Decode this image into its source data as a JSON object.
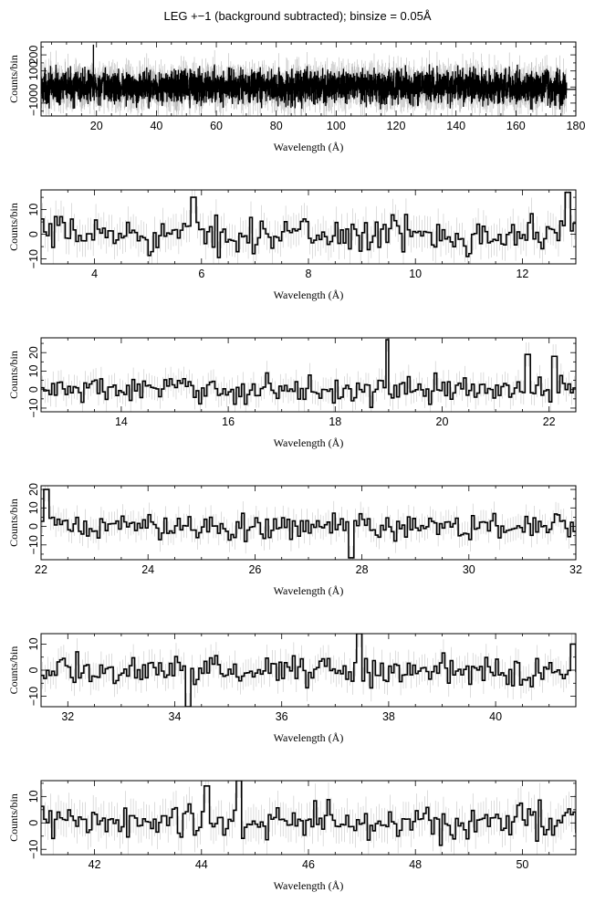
{
  "title": "LEG +−1 (background subtracted); binsize = 0.05Å",
  "chart_data": [
    {
      "type": "line",
      "xlabel": "Wavelength (Å)",
      "ylabel": "Counts/bin",
      "xlim": [
        1.5,
        180
      ],
      "ylim": [
        -180,
        280
      ],
      "xticks": [
        20,
        40,
        60,
        80,
        100,
        120,
        140,
        160,
        180
      ],
      "yticks": [
        -100,
        0,
        100,
        200
      ],
      "ytick_labels": [
        "−100",
        "0",
        "100",
        "200"
      ],
      "series": [
        {
          "style": "histogram with grey error bars",
          "color": "#000000",
          "errcolor": "#bbbbbb",
          "approx_amplitude": 70,
          "spikes": [
            {
              "x": 18.97,
              "y": 260
            }
          ]
        }
      ]
    },
    {
      "type": "line",
      "xlabel": "Wavelength (Å)",
      "ylabel": "Counts/bin",
      "xlim": [
        3,
        13
      ],
      "ylim": [
        -12,
        18
      ],
      "xticks": [
        4,
        6,
        8,
        10,
        12
      ],
      "yticks": [
        -10,
        0,
        10
      ],
      "ytick_labels": [
        "−10",
        "0",
        "10"
      ],
      "series": [
        {
          "style": "histogram with grey error bars",
          "color": "#000000",
          "errcolor": "#bbbbbb",
          "approx_amplitude": 5,
          "spikes": [
            {
              "x": 5.85,
              "y": 15
            },
            {
              "x": 12.85,
              "y": 17
            }
          ]
        }
      ]
    },
    {
      "type": "line",
      "xlabel": "Wavelength (Å)",
      "ylabel": "Counts/bin",
      "xlim": [
        12.5,
        22.5
      ],
      "ylim": [
        -12,
        28
      ],
      "xticks": [
        14,
        16,
        18,
        20,
        22
      ],
      "yticks": [
        -10,
        0,
        10,
        20
      ],
      "ytick_labels": [
        "−10",
        "0",
        "10",
        "20"
      ],
      "series": [
        {
          "style": "histogram with grey error bars",
          "color": "#000000",
          "errcolor": "#bbbbbb",
          "approx_amplitude": 5,
          "spikes": [
            {
              "x": 18.97,
              "y": 27
            },
            {
              "x": 21.6,
              "y": 19
            },
            {
              "x": 22.1,
              "y": 18
            }
          ]
        }
      ]
    },
    {
      "type": "line",
      "xlabel": "Wavelength (Å)",
      "ylabel": "Counts/bin",
      "xlim": [
        22,
        32
      ],
      "ylim": [
        -18,
        22
      ],
      "xticks": [
        22,
        24,
        26,
        28,
        30,
        32
      ],
      "yticks": [
        -10,
        0,
        10,
        20
      ],
      "ytick_labels": [
        "−10",
        "0",
        "10",
        "20"
      ],
      "series": [
        {
          "style": "histogram with grey error bars",
          "color": "#000000",
          "errcolor": "#bbbbbb",
          "approx_amplitude": 5,
          "spikes": [
            {
              "x": 22.1,
              "y": 20
            },
            {
              "x": 27.8,
              "y": -17
            }
          ]
        }
      ]
    },
    {
      "type": "line",
      "xlabel": "Wavelength (Å)",
      "ylabel": "Counts/bin",
      "xlim": [
        31.5,
        41.5
      ],
      "ylim": [
        -14,
        14
      ],
      "xticks": [
        32,
        34,
        36,
        38,
        40
      ],
      "yticks": [
        -10,
        0,
        10
      ],
      "ytick_labels": [
        "−10",
        "0",
        "10"
      ],
      "series": [
        {
          "style": "histogram with grey error bars",
          "color": "#000000",
          "errcolor": "#bbbbbb",
          "approx_amplitude": 4,
          "spikes": [
            {
              "x": 34.25,
              "y": -14
            },
            {
              "x": 37.45,
              "y": 14
            },
            {
              "x": 41.45,
              "y": 10
            }
          ]
        }
      ]
    },
    {
      "type": "line",
      "xlabel": "Wavelength (Å)",
      "ylabel": "Counts/bin",
      "xlim": [
        41,
        51
      ],
      "ylim": [
        -12,
        16
      ],
      "xticks": [
        42,
        44,
        46,
        48,
        50
      ],
      "yticks": [
        -10,
        0,
        10
      ],
      "ytick_labels": [
        "−10",
        "0",
        "10"
      ],
      "series": [
        {
          "style": "histogram with grey error bars",
          "color": "#000000",
          "errcolor": "#bbbbbb",
          "approx_amplitude": 5,
          "spikes": [
            {
              "x": 44.7,
              "y": 16
            },
            {
              "x": 44.1,
              "y": 14
            }
          ]
        }
      ]
    }
  ]
}
